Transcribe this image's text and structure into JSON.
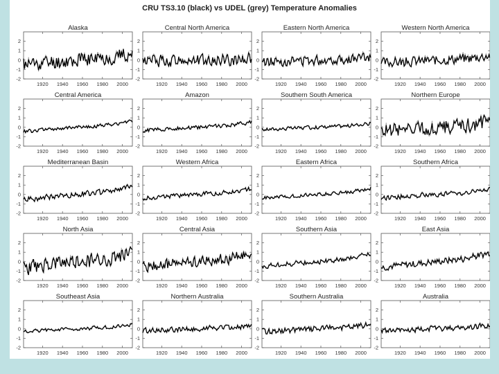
{
  "chart_data": {
    "type": "line",
    "title": "CRU TS3.10 (black) vs UDEL (grey) Temperature Anomalies",
    "xlabel": "",
    "ylabel": "",
    "xlim": [
      1901,
      2010
    ],
    "ylim": [
      -2,
      3
    ],
    "x_ticks": [
      "1920",
      "1940",
      "1960",
      "1980",
      "2000"
    ],
    "y_ticks": [
      "2",
      "1",
      "0",
      "-1",
      "-2"
    ],
    "grid": false,
    "legend": "none",
    "series_colors": {
      "CRU TS3.10": "#000000",
      "UDEL": "#9a9a9a"
    },
    "panels": [
      {
        "region": "Alaska",
        "amplitude": 0.75,
        "trend": 0.9,
        "seed": 11
      },
      {
        "region": "Central North America",
        "amplitude": 0.6,
        "trend": 0.2,
        "seed": 12
      },
      {
        "region": "Eastern North America",
        "amplitude": 0.5,
        "trend": 0.4,
        "seed": 13
      },
      {
        "region": "Western North America",
        "amplitude": 0.5,
        "trend": 0.6,
        "seed": 14
      },
      {
        "region": "Central America",
        "amplitude": 0.18,
        "trend": 0.9,
        "seed": 15
      },
      {
        "region": "Amazon",
        "amplitude": 0.2,
        "trend": 0.7,
        "seed": 16
      },
      {
        "region": "Southern South America",
        "amplitude": 0.18,
        "trend": 0.5,
        "seed": 17
      },
      {
        "region": "Northern Europe",
        "amplitude": 0.75,
        "trend": 0.8,
        "seed": 18
      },
      {
        "region": "Mediterranean Basin",
        "amplitude": 0.28,
        "trend": 1.1,
        "seed": 19
      },
      {
        "region": "Western Africa",
        "amplitude": 0.22,
        "trend": 0.8,
        "seed": 20
      },
      {
        "region": "Eastern Africa",
        "amplitude": 0.18,
        "trend": 0.8,
        "seed": 21
      },
      {
        "region": "Southern Africa",
        "amplitude": 0.25,
        "trend": 0.7,
        "seed": 22
      },
      {
        "region": "North Asia",
        "amplitude": 0.75,
        "trend": 1.3,
        "seed": 23
      },
      {
        "region": "Central Asia",
        "amplitude": 0.55,
        "trend": 1.1,
        "seed": 24
      },
      {
        "region": "Southern Asia",
        "amplitude": 0.25,
        "trend": 1.0,
        "seed": 25
      },
      {
        "region": "East Asia",
        "amplitude": 0.35,
        "trend": 1.2,
        "seed": 26
      },
      {
        "region": "Southeast Asia",
        "amplitude": 0.18,
        "trend": 0.5,
        "seed": 27
      },
      {
        "region": "Northern Australia",
        "amplitude": 0.28,
        "trend": 0.4,
        "seed": 28
      },
      {
        "region": "Southern Australia",
        "amplitude": 0.3,
        "trend": 0.6,
        "seed": 29
      },
      {
        "region": "Australia",
        "amplitude": 0.28,
        "trend": 0.5,
        "seed": 30
      }
    ]
  }
}
